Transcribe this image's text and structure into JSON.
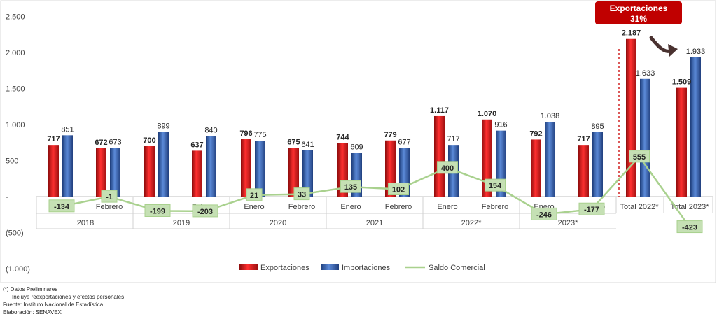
{
  "chart_data": {
    "type": "bar",
    "y_ticks": [
      "2.500",
      "2.000",
      "1.500",
      "1.000",
      "500",
      "-",
      "(500)",
      "(1.000)"
    ],
    "ylim": [
      -1000,
      2500
    ],
    "grid": false,
    "legend_placement": "bottom-center",
    "categories": [
      "Enero",
      "Febrero",
      "Enero",
      "Febrero",
      "Enero",
      "Febrero",
      "Enero",
      "Febrero",
      "Enero",
      "Febrero",
      "Enero",
      "Febrero",
      "Total 2022*",
      "Total 2023*"
    ],
    "groups": [
      {
        "label": "2018",
        "span": 2
      },
      {
        "label": "2019",
        "span": 2
      },
      {
        "label": "2020",
        "span": 2
      },
      {
        "label": "2021",
        "span": 2
      },
      {
        "label": "2022*",
        "span": 2
      },
      {
        "label": "2023*",
        "span": 2
      }
    ],
    "series": [
      {
        "name": "Exportaciones",
        "kind": "bar",
        "color": "#d91f1f",
        "values": [
          717,
          672,
          700,
          637,
          796,
          675,
          744,
          779,
          1117,
          1070,
          792,
          717,
          2187,
          1509
        ],
        "labels": [
          "717",
          "672",
          "700",
          "637",
          "796",
          "675",
          "744",
          "779",
          "1.117",
          "1.070",
          "792",
          "717",
          "2.187",
          "1.509"
        ]
      },
      {
        "name": "Importaciones",
        "kind": "bar",
        "color": "#2f5fb3",
        "values": [
          851,
          673,
          899,
          840,
          775,
          641,
          609,
          677,
          717,
          916,
          1038,
          895,
          1633,
          1933
        ],
        "labels": [
          "851",
          "673",
          "899",
          "840",
          "775",
          "641",
          "609",
          "677",
          "717",
          "916",
          "1.038",
          "895",
          "1.633",
          "1.933"
        ]
      },
      {
        "name": "Saldo Comercial",
        "kind": "line",
        "color": "#a9d18e",
        "values": [
          -134,
          -1,
          -199,
          -203,
          21,
          33,
          135,
          102,
          400,
          154,
          -246,
          -177,
          555,
          -423
        ],
        "labels": [
          "-134",
          "-1",
          "-199",
          "-203",
          "21",
          "33",
          "135",
          "102",
          "400",
          "154",
          "-246",
          "-177",
          "555",
          "-423"
        ]
      }
    ],
    "annotation": {
      "line1": "Exportaciones",
      "line2": "31%",
      "color": "#c00000"
    }
  },
  "footnotes": {
    "line1": "(*) Datos Preliminares",
    "line2": "Incluye reexportaciones y efectos personales",
    "line3": "Fuente: Instituto Nacional de Estadística",
    "line4": "Elaboración: SENAVEX"
  }
}
